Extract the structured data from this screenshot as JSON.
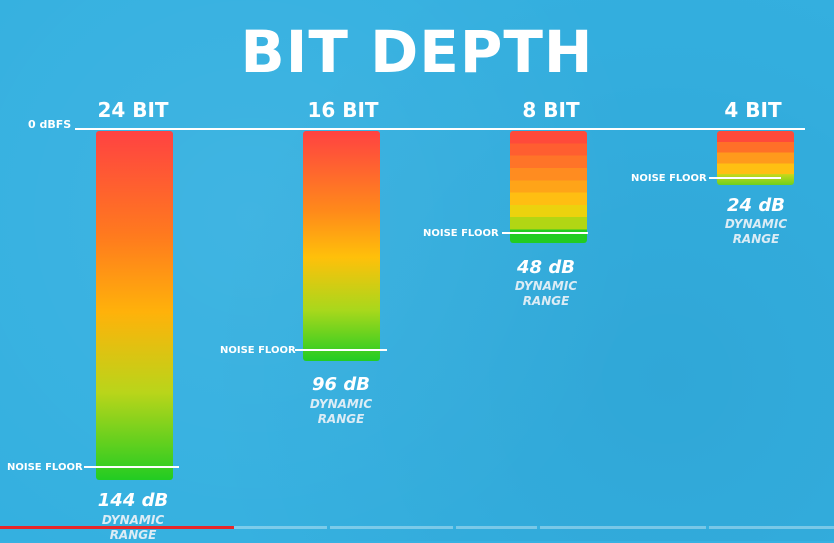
{
  "title": "BIT DEPTH",
  "reference_label": "0 dBFS",
  "noise_floor_label": "NOISE FLOOR",
  "dynamic_label": "DYNAMIC",
  "range_label": "RANGE",
  "columns": [
    {
      "bit": "24 BIT",
      "db": "144 dB"
    },
    {
      "bit": "16 BIT",
      "db": "96 dB"
    },
    {
      "bit": "8 BIT",
      "db": "48 dB"
    },
    {
      "bit": "4 BIT",
      "db": "24 dB"
    }
  ],
  "colors": {
    "background": "#34b0e0",
    "bar_top": "#ff4040",
    "bar_mid": "#ffb300",
    "bar_bottom": "#22cc22",
    "progress": "#e8262a"
  },
  "video_progress": 0.28
}
